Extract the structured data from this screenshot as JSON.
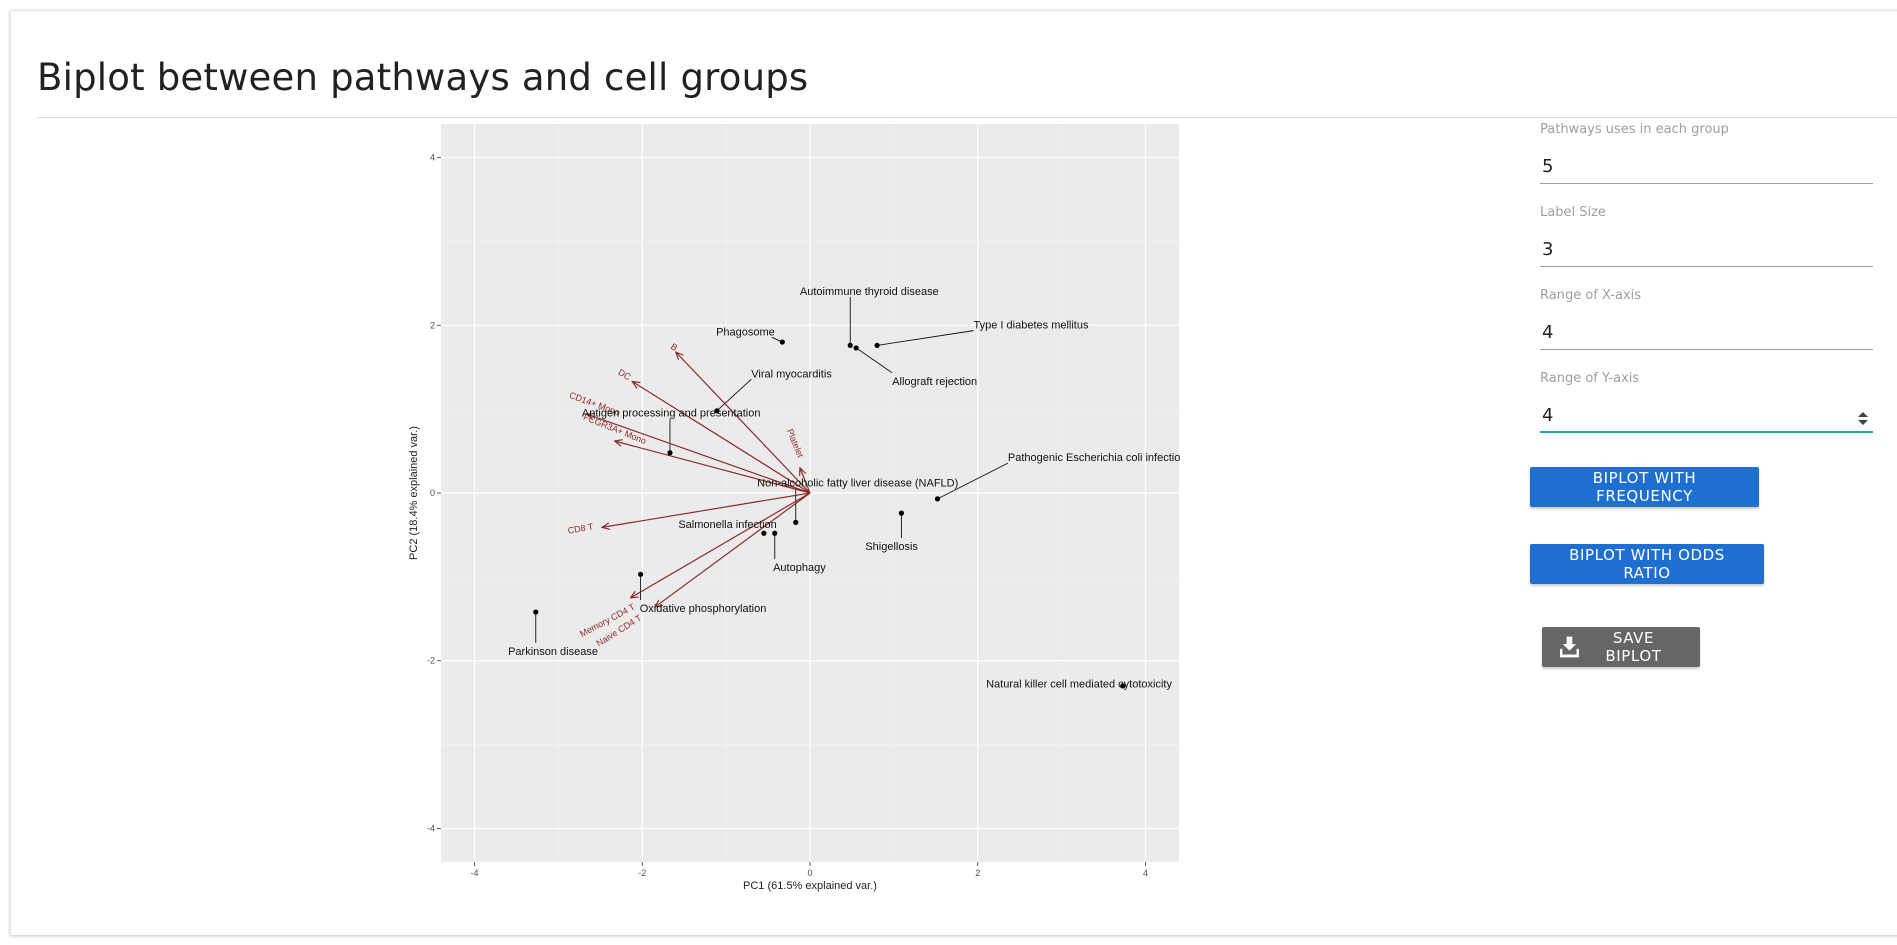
{
  "page": {
    "title": "Biplot between pathways and cell groups"
  },
  "controls": {
    "pathways": {
      "label": "Pathways uses in each group",
      "value": "5"
    },
    "label_size": {
      "label": "Label Size",
      "value": "3"
    },
    "x_range": {
      "label": "Range of X-axis",
      "value": "4"
    },
    "y_range": {
      "label": "Range of Y-axis",
      "value": "4"
    },
    "btn_frequency": "BIPLOT WITH FREQUENCY",
    "btn_odds": "BIPLOT WITH ODDS RATIO",
    "btn_save": "SAVE BIPLOT",
    "save_icon": "download-icon"
  },
  "colors": {
    "panel": "#ebebeb",
    "arrow": "#8b2a2a",
    "button_blue": "#1f6fd1",
    "button_grey": "#666666",
    "focus": "#26a69a"
  },
  "chart_data": {
    "type": "scatter",
    "xlabel": "PC1 (61.5% explained var.)",
    "ylabel": "PC2 (18.4% explained var.)",
    "xlim": [
      -4.4,
      4.4
    ],
    "ylim": [
      -4.4,
      4.4
    ],
    "xticks": [
      -4,
      -2,
      0,
      2,
      4
    ],
    "yticks": [
      -4,
      -2,
      0,
      2,
      4
    ],
    "grid": true,
    "points": [
      {
        "label": "Autoimmune thyroid disease",
        "x": 0.48,
        "y": 1.76,
        "lx": -0.12,
        "ly": 2.36
      },
      {
        "label": "Type I diabetes mellitus",
        "x": 0.8,
        "y": 1.76,
        "lx": 1.95,
        "ly": 1.96
      },
      {
        "label": "Allograft rejection",
        "x": 0.55,
        "y": 1.73,
        "lx": 0.98,
        "ly": 1.29
      },
      {
        "label": "Phagosome",
        "x": -0.33,
        "y": 1.8,
        "lx": -1.12,
        "ly": 1.88
      },
      {
        "label": "Viral myocarditis",
        "x": -1.11,
        "y": 0.98,
        "lx": -0.7,
        "ly": 1.38
      },
      {
        "label": "Antigen processing and presentation",
        "x": -1.67,
        "y": 0.48,
        "lx": -2.72,
        "ly": 0.91
      },
      {
        "label": "Non-alcoholic fatty liver disease (NAFLD)",
        "x": -0.17,
        "y": -0.35,
        "lx": -0.63,
        "ly": 0.08
      },
      {
        "label": "Pathogenic Escherichia coli infection",
        "x": 1.52,
        "y": -0.07,
        "lx": 2.36,
        "ly": 0.38
      },
      {
        "label": "Shigellosis",
        "x": 1.09,
        "y": -0.24,
        "lx": 0.66,
        "ly": -0.68
      },
      {
        "label": "Salmonella infection",
        "x": -0.55,
        "y": -0.48,
        "lx": -1.57,
        "ly": -0.42
      },
      {
        "label": "Autophagy",
        "x": -0.42,
        "y": -0.48,
        "lx": -0.44,
        "ly": -0.93
      },
      {
        "label": "Oxidative phosphorylation",
        "x": -2.02,
        "y": -0.97,
        "lx": -2.03,
        "ly": -1.42
      },
      {
        "label": "Parkinson disease",
        "x": -3.27,
        "y": -1.42,
        "lx": -3.6,
        "ly": -1.93
      },
      {
        "label": "Natural killer cell mediated cytotoxicity",
        "x": 3.73,
        "y": -2.3,
        "lx": 2.1,
        "ly": -2.32
      }
    ],
    "arrows": [
      {
        "name": "B",
        "x": -1.6,
        "y": 1.68,
        "lx": -1.64,
        "ly": 1.71,
        "rot": 35
      },
      {
        "name": "DC",
        "x": -2.12,
        "y": 1.33,
        "lx": -2.23,
        "ly": 1.38,
        "rot": 30
      },
      {
        "name": "CD14+ Mono",
        "x": -2.66,
        "y": 0.94,
        "lx": -2.58,
        "ly": 1.03,
        "rot": 20
      },
      {
        "name": "FCGR3A+ Mono",
        "x": -2.33,
        "y": 0.62,
        "lx": -2.34,
        "ly": 0.73,
        "rot": 22
      },
      {
        "name": "Platelet",
        "x": -0.12,
        "y": 0.3,
        "lx": -0.21,
        "ly": 0.58,
        "rot": 68
      },
      {
        "name": "CD8 T",
        "x": -2.48,
        "y": -0.41,
        "lx": -2.73,
        "ly": -0.46,
        "rot": -10
      },
      {
        "name": "Memory CD4 T",
        "x": -2.14,
        "y": -1.25,
        "lx": -2.4,
        "ly": -1.55,
        "rot": -28
      },
      {
        "name": "Naive CD4 T",
        "x": -1.85,
        "y": -1.36,
        "lx": -2.26,
        "ly": -1.67,
        "rot": -32
      }
    ]
  }
}
